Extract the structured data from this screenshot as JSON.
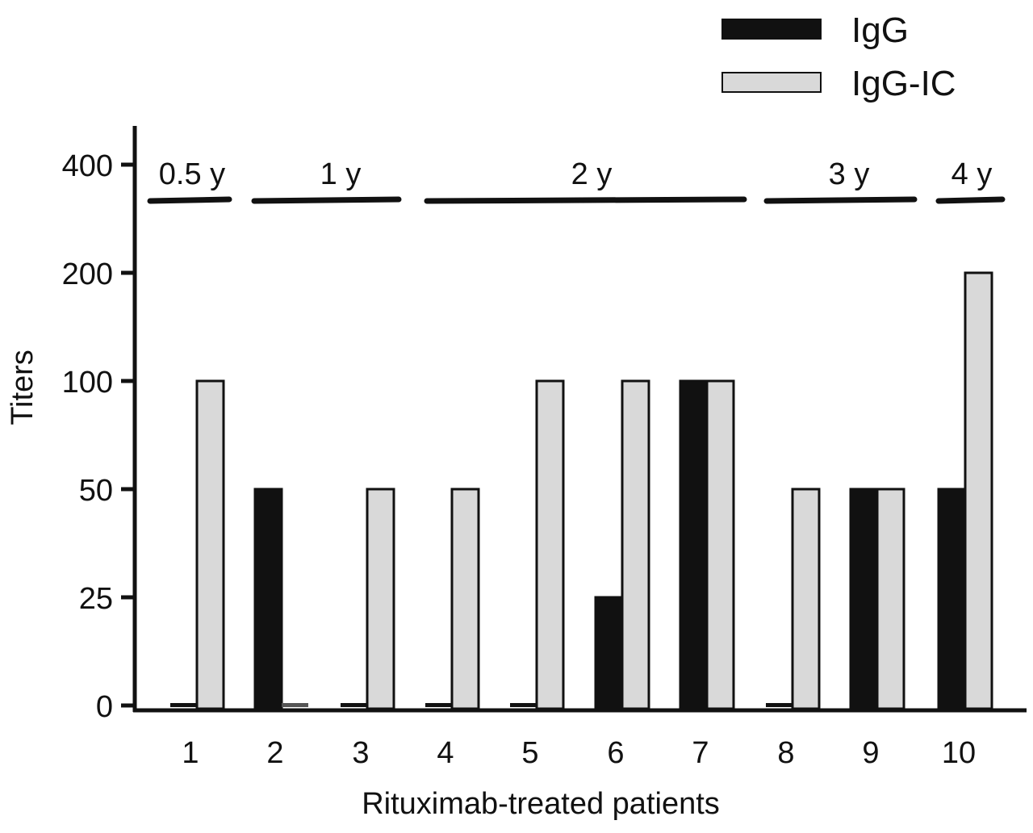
{
  "chart_data": {
    "type": "bar",
    "title": "",
    "xlabel": "Rituximab-treated patients",
    "ylabel": "Titers",
    "categories": [
      "1",
      "2",
      "3",
      "4",
      "5",
      "6",
      "7",
      "8",
      "9",
      "10"
    ],
    "y_scale": "categorical-levels",
    "y_ticks": [
      "0",
      "25",
      "50",
      "100",
      "200",
      "400"
    ],
    "series": [
      {
        "name": "IgG",
        "color": "#111111",
        "values": [
          0,
          50,
          0,
          0,
          0,
          25,
          100,
          0,
          50,
          50
        ]
      },
      {
        "name": "IgG-IC",
        "color": "#d9d9d9",
        "values": [
          100,
          0,
          50,
          50,
          100,
          100,
          100,
          50,
          50,
          200
        ]
      }
    ],
    "groups": [
      {
        "label": "0.5 y",
        "patients": [
          "1"
        ]
      },
      {
        "label": "1 y",
        "patients": [
          "2",
          "3"
        ]
      },
      {
        "label": "2 y",
        "patients": [
          "4",
          "5",
          "6",
          "7"
        ]
      },
      {
        "label": "3 y",
        "patients": [
          "8",
          "9"
        ]
      },
      {
        "label": "4 y",
        "patients": [
          "10"
        ]
      }
    ],
    "legend_position": "top-right",
    "grid": false
  }
}
